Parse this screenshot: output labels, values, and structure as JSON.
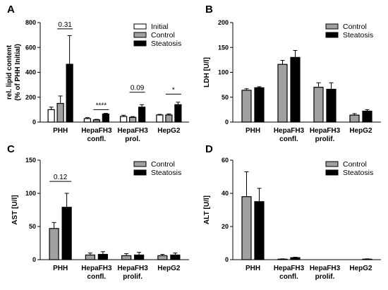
{
  "chart_data": [
    {
      "panel": "A",
      "type": "bar",
      "ylabel": "rel. lipid content\n(% of PHH Initial)",
      "ylim": [
        0,
        800
      ],
      "yticks": [
        0,
        200,
        400,
        600,
        800
      ],
      "categories": [
        "PHH",
        "HepaFH3\nconfl.",
        "HepaFH3\nprol.",
        "HepG2"
      ],
      "series": [
        {
          "name": "Initial",
          "color": "#ffffff",
          "values": [
            100,
            28,
            45,
            57
          ],
          "errors": [
            20,
            8,
            10,
            5
          ]
        },
        {
          "name": "Control",
          "color": "#a0a0a0",
          "values": [
            150,
            18,
            38,
            57
          ],
          "errors": [
            60,
            4,
            6,
            8
          ]
        },
        {
          "name": "Steatosis",
          "color": "#000000",
          "values": [
            465,
            65,
            120,
            140
          ],
          "errors": [
            230,
            5,
            20,
            20
          ]
        }
      ],
      "annotations": [
        {
          "text": "0.31",
          "category": 0,
          "from_series": 1,
          "to_series": 2,
          "y": 750
        },
        {
          "text": "****",
          "category": 1,
          "from_series": 1,
          "to_series": 2,
          "y": 100
        },
        {
          "text": "0.09",
          "category": 2,
          "from_series": 1,
          "to_series": 2,
          "y": 240
        },
        {
          "text": "*",
          "category": 3,
          "from_series": 1,
          "to_series": 2,
          "y": 225
        }
      ],
      "legend_position": "top-right"
    },
    {
      "panel": "B",
      "type": "bar",
      "ylabel": "LDH [U/l]",
      "ylim": [
        0,
        200
      ],
      "yticks": [
        0,
        50,
        100,
        150,
        200
      ],
      "categories": [
        "PHH",
        "HepaFH3\nconfl.",
        "HepaFH3\nprolif.",
        "HepG2"
      ],
      "series": [
        {
          "name": "Control",
          "color": "#a0a0a0",
          "values": [
            64,
            116,
            70,
            14
          ],
          "errors": [
            3,
            8,
            9,
            3
          ]
        },
        {
          "name": "Steatosis",
          "color": "#000000",
          "values": [
            69,
            130,
            66,
            22
          ],
          "errors": [
            2,
            14,
            13,
            3
          ]
        }
      ],
      "legend_position": "top-right"
    },
    {
      "panel": "C",
      "type": "bar",
      "ylabel": "AST [U/l]",
      "ylim": [
        0,
        150
      ],
      "yticks": [
        0,
        50,
        100,
        150
      ],
      "categories": [
        "PHH",
        "HepaFH3\nconfl.",
        "HepaFH3\nprolif.",
        "HepG2"
      ],
      "series": [
        {
          "name": "Control",
          "color": "#a0a0a0",
          "values": [
            47,
            7,
            6,
            6
          ],
          "errors": [
            9,
            3,
            3,
            2
          ]
        },
        {
          "name": "Steatosis",
          "color": "#000000",
          "values": [
            79,
            8,
            7,
            7
          ],
          "errors": [
            21,
            4,
            4,
            3
          ]
        }
      ],
      "annotations": [
        {
          "text": "0.12",
          "category": 0,
          "from_series": 0,
          "to_series": 1,
          "y": 118
        }
      ],
      "legend_position": "top-right"
    },
    {
      "panel": "D",
      "type": "bar",
      "ylabel": "ALT [U/l]",
      "ylim": [
        0,
        60
      ],
      "yticks": [
        0,
        20,
        40,
        60
      ],
      "categories": [
        "PHH",
        "HepaFH3\nconfl.",
        "HepaFH3\nprolif.",
        "HepG2"
      ],
      "series": [
        {
          "name": "Control",
          "color": "#a0a0a0",
          "values": [
            38,
            0.3,
            0,
            0
          ],
          "errors": [
            15,
            0.2,
            0,
            0
          ]
        },
        {
          "name": "Steatosis",
          "color": "#000000",
          "values": [
            35,
            1.2,
            0,
            0.3
          ],
          "errors": [
            8,
            0.3,
            0,
            0.2
          ]
        }
      ],
      "legend_position": "top-right"
    }
  ]
}
